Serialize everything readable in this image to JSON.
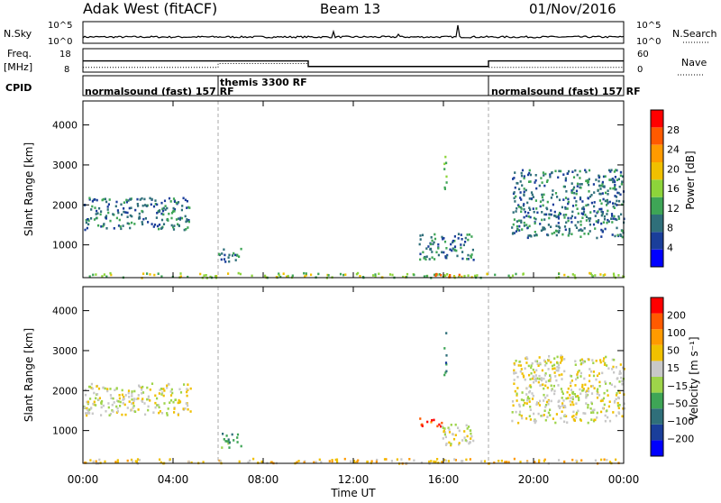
{
  "header": {
    "station": "Adak West (fitACF)",
    "beam": "Beam 13",
    "date": "01/Nov/2016"
  },
  "left_labels": {
    "nsky": "N.Sky",
    "freq": "Freq.",
    "freq_unit": "[MHz]",
    "cpid": "CPID"
  },
  "right_labels": {
    "nsearch": "N.Search",
    "nave": "Nave"
  },
  "noise_panel": {
    "ticks_left": [
      "10^5",
      "10^0"
    ],
    "ticks_right": [
      "10^5",
      "10^0"
    ]
  },
  "freq_panel": {
    "ticks_left": [
      "18",
      "8"
    ],
    "ticks_right": [
      "60",
      "0"
    ],
    "segments": [
      {
        "start_h": 0,
        "end_h": 10,
        "freq": 12.8
      },
      {
        "start_h": 10,
        "end_h": 18,
        "freq": 10.4
      },
      {
        "start_h": 18,
        "end_h": 24,
        "freq": 12.8
      }
    ],
    "nave_segments": [
      {
        "start_h": 0,
        "end_h": 6,
        "nave": 12
      },
      {
        "start_h": 6,
        "end_h": 10,
        "nave": 22
      },
      {
        "start_h": 10,
        "end_h": 18,
        "nave": 14
      },
      {
        "start_h": 18,
        "end_h": 24,
        "nave": 12
      }
    ]
  },
  "cpid_panel": {
    "programs": [
      {
        "label": "normalsound (fast) 157 RF",
        "start_h": 0
      },
      {
        "label": "themis 3300 RF",
        "start_h": 6
      },
      {
        "label": "normalsound (fast) 157 RF",
        "start_h": 18
      }
    ],
    "boundaries_h": [
      6,
      18
    ]
  },
  "colors": {
    "power_scale": [
      "#0000ff",
      "#1a3e9a",
      "#2f6f7a",
      "#3ea556",
      "#8dd43a",
      "#f0c000",
      "#ff9a00",
      "#ff5a00",
      "#ff0000"
    ],
    "velocity_scale": [
      "#0000ff",
      "#1a3e9a",
      "#2f6f7a",
      "#3ea556",
      "#9ed44a",
      "#c8c8c8",
      "#f0c000",
      "#ff9a00",
      "#ff5a00",
      "#ff0000"
    ]
  },
  "chart_data": [
    {
      "type": "heatmap",
      "panel": "power",
      "ylabel": "Slant Range [km]",
      "xlabel": "",
      "x_range_h": [
        0,
        24
      ],
      "ylim": [
        180,
        4600
      ],
      "y_ticks": [
        "1000",
        "2000",
        "3000",
        "4000"
      ],
      "colorbar": {
        "label": "Power [dB]",
        "ticks": [
          "4",
          "8",
          "12",
          "16",
          "20",
          "24",
          "28"
        ],
        "range": [
          0,
          30
        ]
      },
      "regions": [
        {
          "t0": 0.0,
          "t1": 4.8,
          "r0": 1400,
          "r1": 2200,
          "value": 8
        },
        {
          "t0": 6.0,
          "t1": 7.0,
          "r0": 600,
          "r1": 950,
          "value": 9
        },
        {
          "t0": 14.9,
          "t1": 17.3,
          "r0": 650,
          "r1": 1300,
          "value": 7
        },
        {
          "t0": 16.0,
          "t1": 16.1,
          "r0": 2400,
          "r1": 3500,
          "value": 13
        },
        {
          "t0": 19.0,
          "t1": 24.0,
          "r0": 1200,
          "r1": 2900,
          "value": 7
        },
        {
          "t0": 0.0,
          "t1": 24.0,
          "r0": 200,
          "r1": 320,
          "value": 14
        },
        {
          "t0": 15.5,
          "t1": 16.8,
          "r0": 200,
          "r1": 300,
          "value": 22
        }
      ]
    },
    {
      "type": "heatmap",
      "panel": "velocity",
      "ylabel": "Slant Range [km]",
      "xlabel": "Time UT",
      "x_range_h": [
        0,
        24
      ],
      "x_ticks": [
        "00:00",
        "04:00",
        "08:00",
        "12:00",
        "16:00",
        "20:00",
        "00:00"
      ],
      "ylim": [
        180,
        4600
      ],
      "y_ticks": [
        "1000",
        "2000",
        "3000",
        "4000"
      ],
      "colorbar": {
        "label": "Velocity [m s⁻¹]",
        "ticks": [
          "200",
          "100",
          "50",
          "15",
          "−15",
          "−50",
          "−100",
          "−200"
        ],
        "range": [
          -250,
          250
        ]
      },
      "regions": [
        {
          "t0": 0.0,
          "t1": 4.8,
          "r0": 1400,
          "r1": 2200,
          "value": 0
        },
        {
          "t0": 6.0,
          "t1": 7.0,
          "r0": 600,
          "r1": 950,
          "value": 30
        },
        {
          "t0": 14.9,
          "t1": 15.9,
          "r0": 1100,
          "r1": 1350,
          "value": -180
        },
        {
          "t0": 15.9,
          "t1": 17.3,
          "r0": 650,
          "r1": 1200,
          "value": -5
        },
        {
          "t0": 16.0,
          "t1": 16.1,
          "r0": 2400,
          "r1": 3500,
          "value": 60
        },
        {
          "t0": 19.0,
          "t1": 24.0,
          "r0": 1200,
          "r1": 2900,
          "value": 0
        },
        {
          "t0": 0.0,
          "t1": 24.0,
          "r0": 200,
          "r1": 320,
          "value": -40
        }
      ]
    }
  ]
}
